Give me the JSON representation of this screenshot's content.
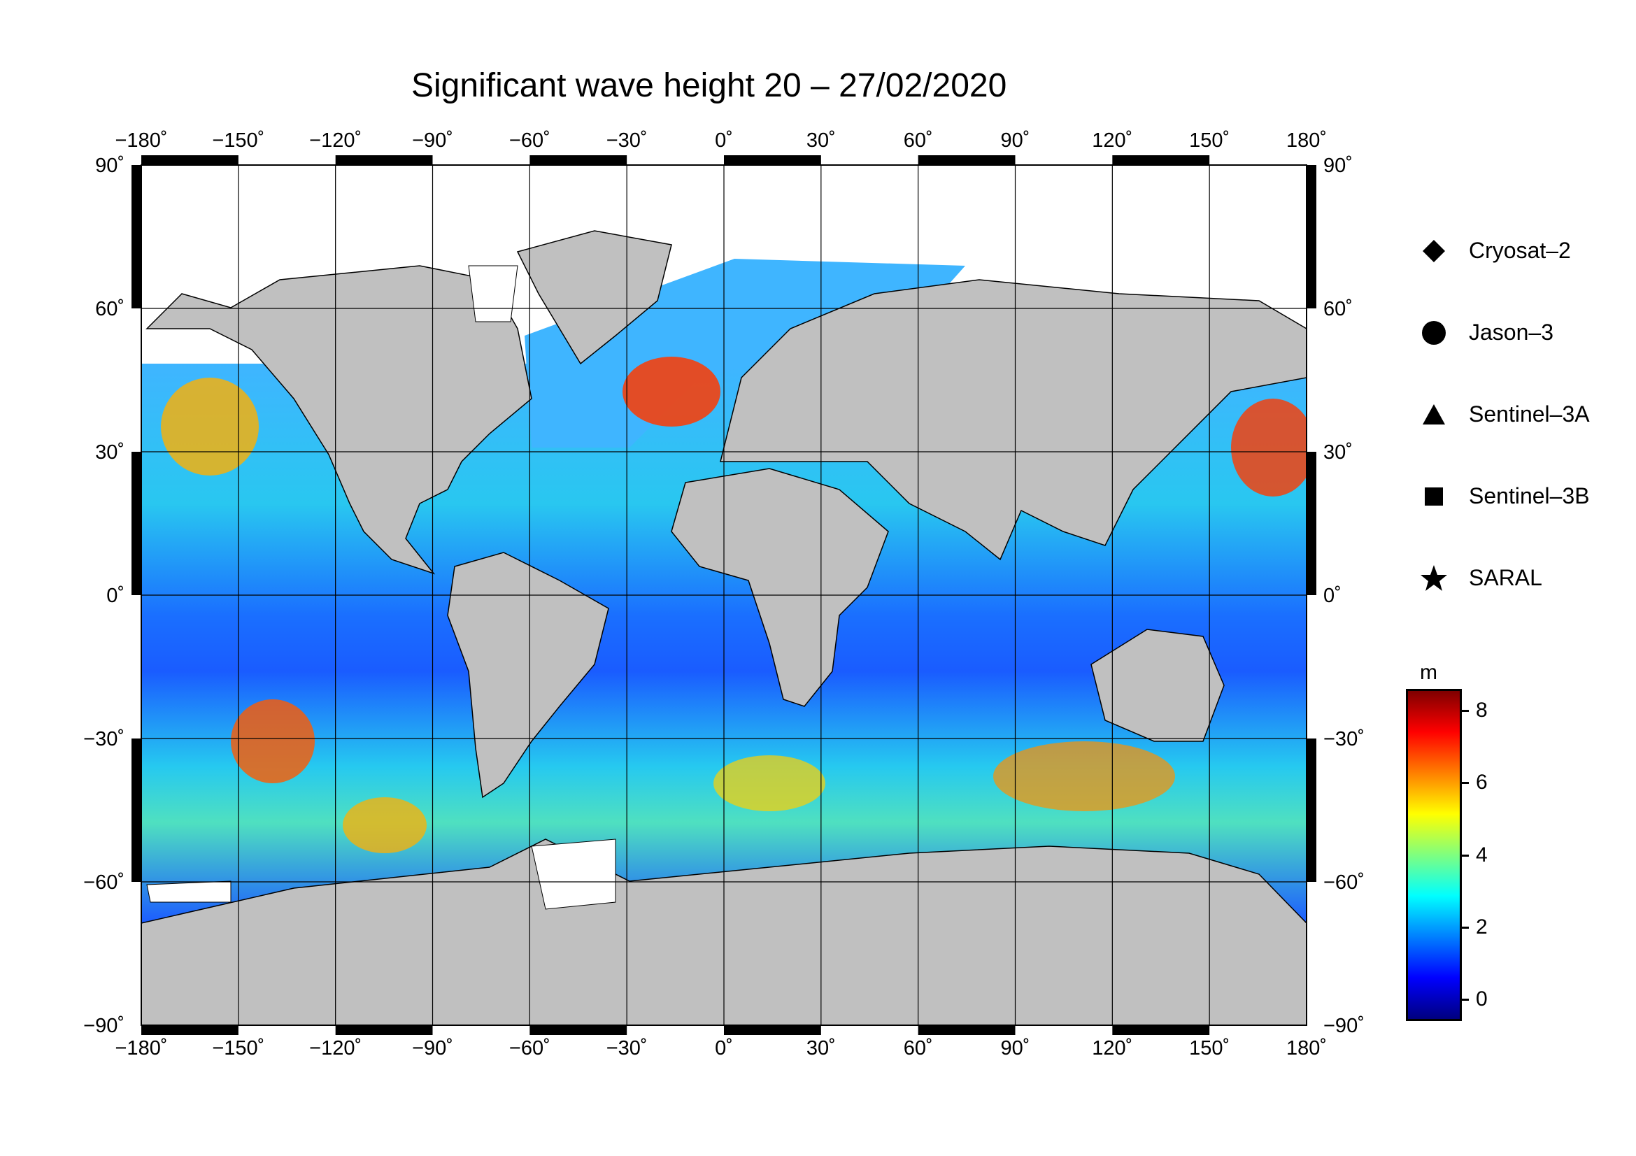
{
  "title": "Significant wave height 20 – 27/02/2020",
  "lon_ticks": [
    "−180˚",
    "−150˚",
    "−120˚",
    "−90˚",
    "−60˚",
    "−30˚",
    "0˚",
    "30˚",
    "60˚",
    "90˚",
    "120˚",
    "150˚",
    "180˚"
  ],
  "lat_ticks": [
    "90˚",
    "60˚",
    "30˚",
    "0˚",
    "−30˚",
    "−60˚",
    "−90˚"
  ],
  "legend": [
    {
      "label": "Cryosat–2",
      "symbol": "diamond"
    },
    {
      "label": "Jason–3",
      "symbol": "circle"
    },
    {
      "label": "Sentinel–3A",
      "symbol": "triangle"
    },
    {
      "label": "Sentinel–3B",
      "symbol": "square"
    },
    {
      "label": "SARAL",
      "symbol": "star"
    }
  ],
  "colorbar": {
    "unit": "m",
    "ticks": [
      "8",
      "6",
      "4",
      "2",
      "0"
    ],
    "tick_values": [
      8,
      6,
      4,
      2,
      0
    ],
    "range": [
      -0.6,
      8.6
    ],
    "colors": [
      "#00007f",
      "#0000ff",
      "#007fff",
      "#00ffff",
      "#7fff7f",
      "#ffff00",
      "#ff7f00",
      "#ff0000",
      "#7f0000"
    ]
  },
  "map": {
    "ocean_color": "#1a8cff",
    "land_color": "#c0c0c0",
    "ice_color": "#ffffff",
    "lon_range": [
      -180,
      180
    ],
    "lat_range": [
      -90,
      90
    ]
  }
}
